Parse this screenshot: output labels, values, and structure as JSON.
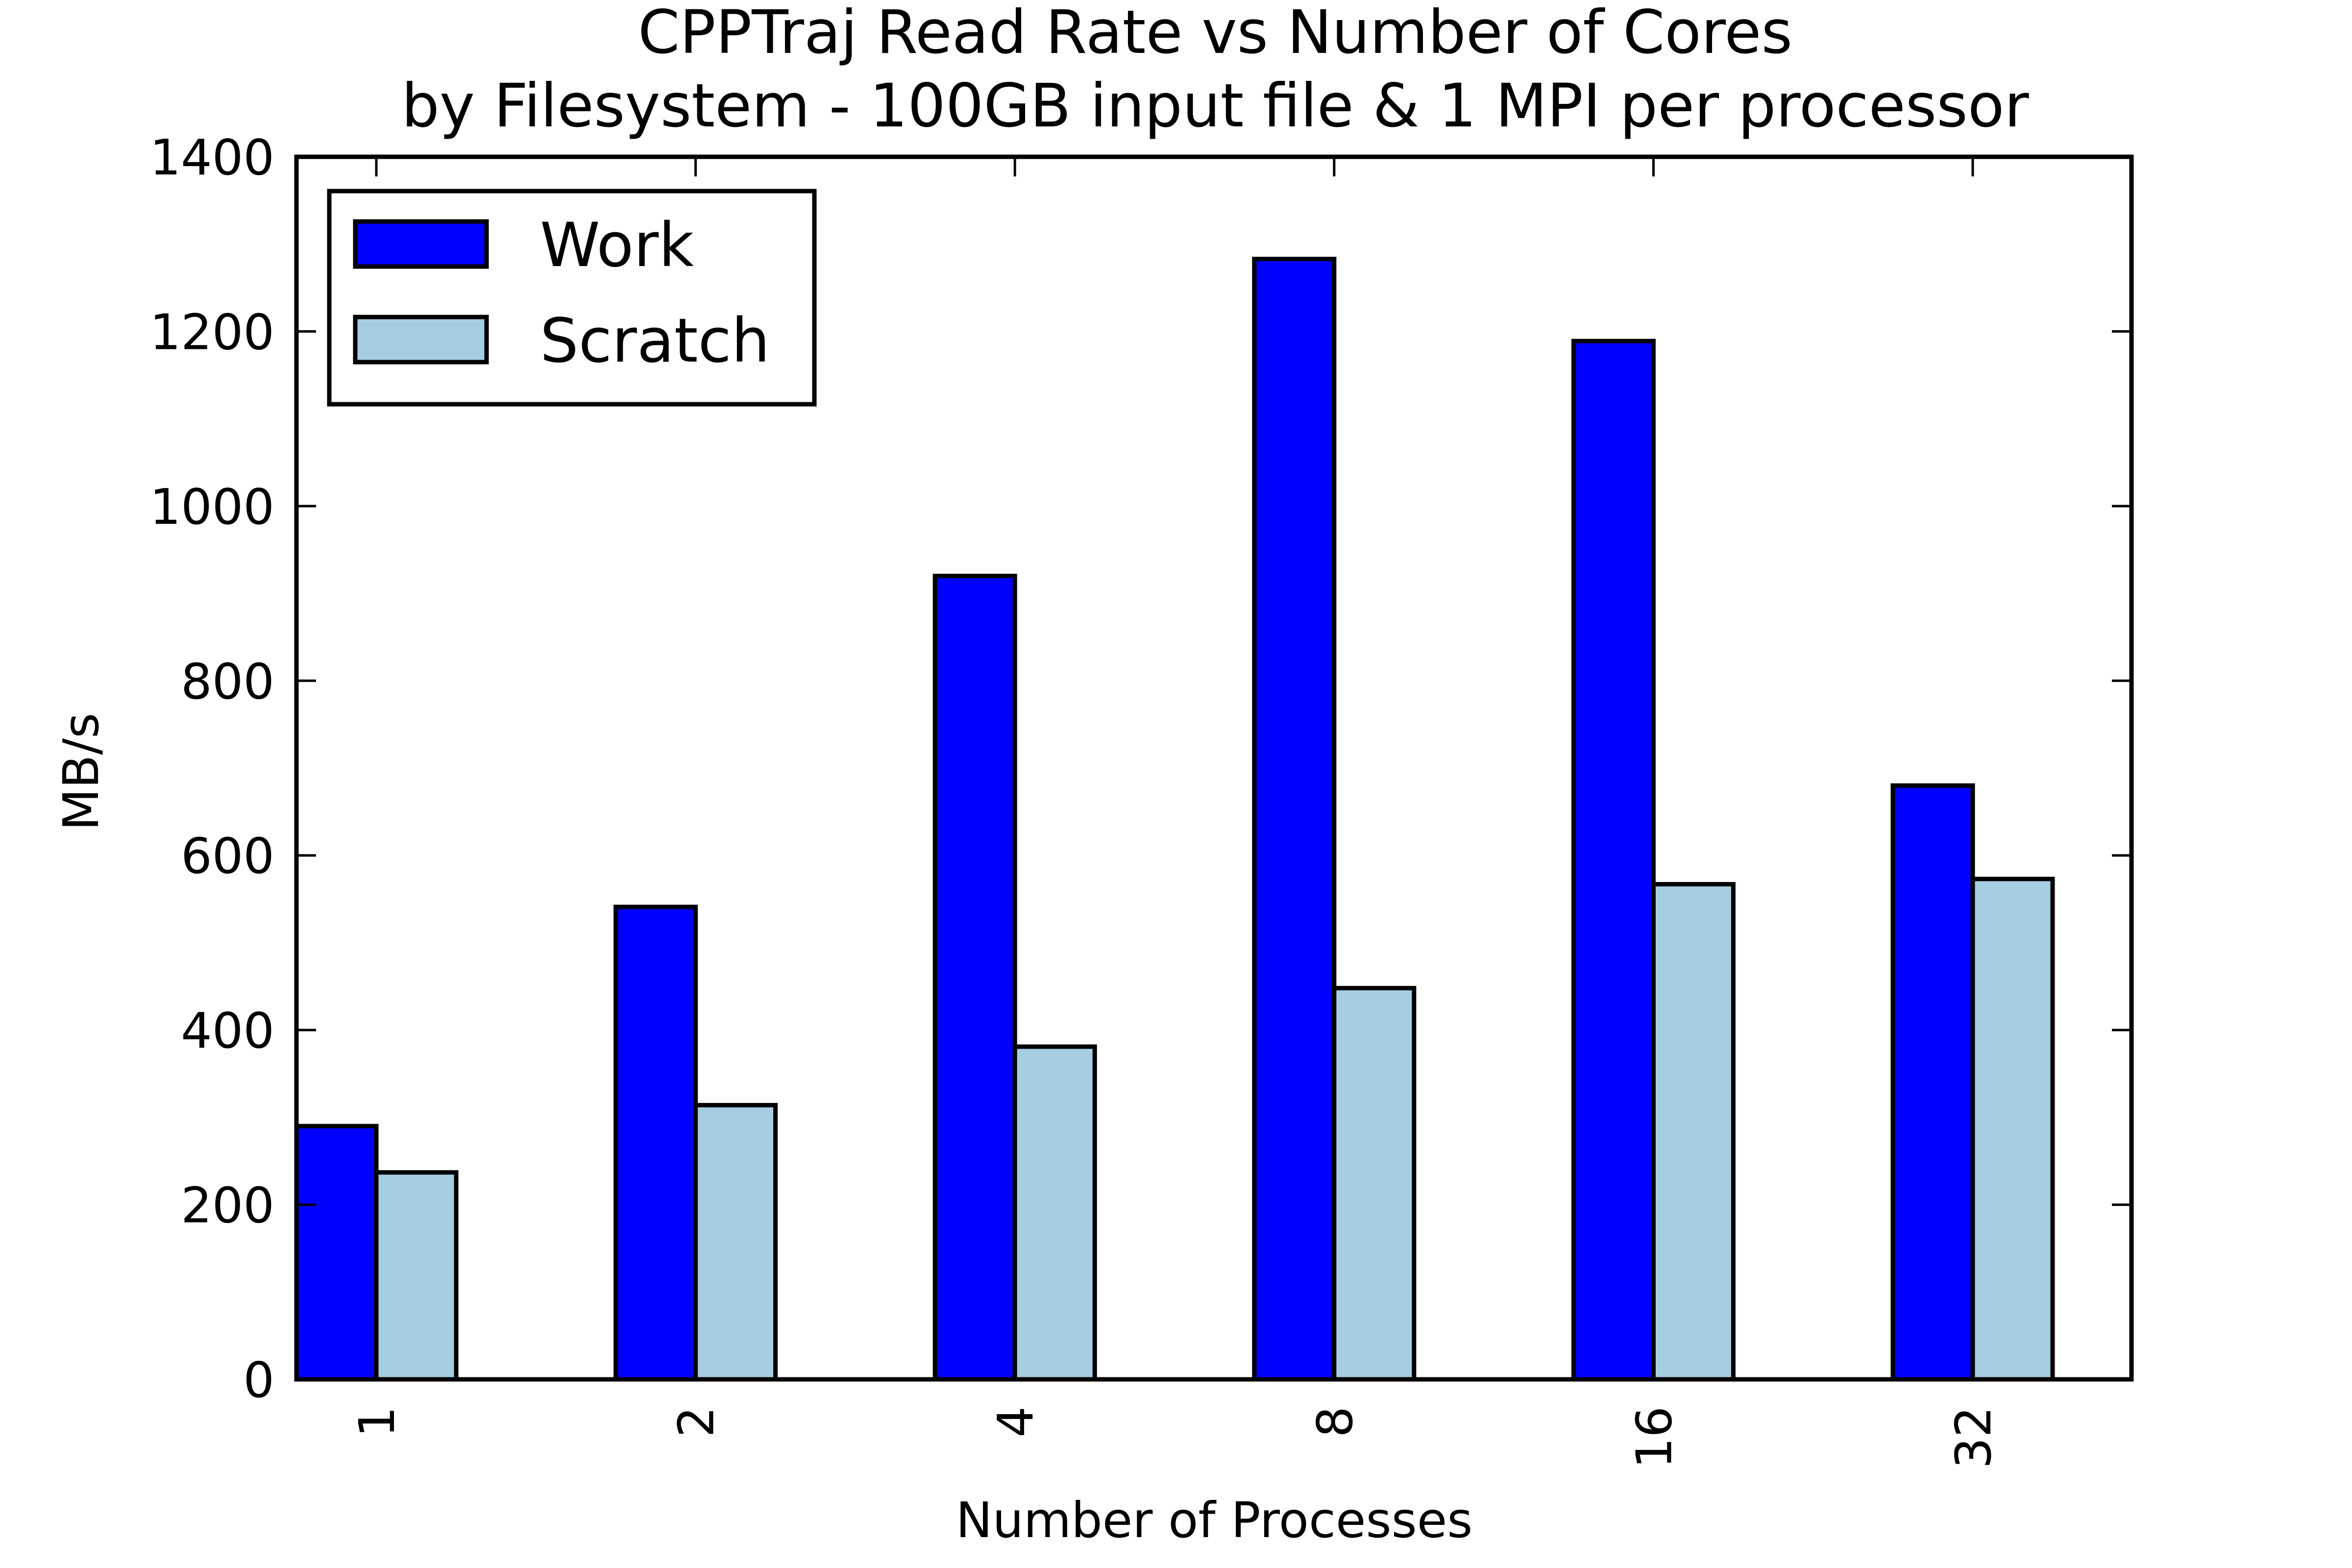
{
  "chart_data": {
    "type": "bar",
    "title": "CPPTraj Read Rate vs Number of Cores",
    "subtitle": "by Filesystem - 100GB input file & 1 MPI per processor",
    "xlabel": "Number of Processes",
    "ylabel": "MB/s",
    "categories": [
      "1",
      "2",
      "4",
      "8",
      "16",
      "32"
    ],
    "series": [
      {
        "name": "Work",
        "color": "#0000ff",
        "values": [
          290,
          541,
          920,
          1283,
          1189,
          680
        ]
      },
      {
        "name": "Scratch",
        "color": "#a6cee3",
        "values": [
          237,
          314,
          381,
          448,
          567,
          573
        ]
      }
    ],
    "ylim": [
      0,
      1400
    ],
    "yticks": [
      0,
      200,
      400,
      600,
      800,
      1000,
      1200,
      1400
    ],
    "xtick_rotation": "vertical",
    "grid": false,
    "legend_position": "upper-left"
  }
}
